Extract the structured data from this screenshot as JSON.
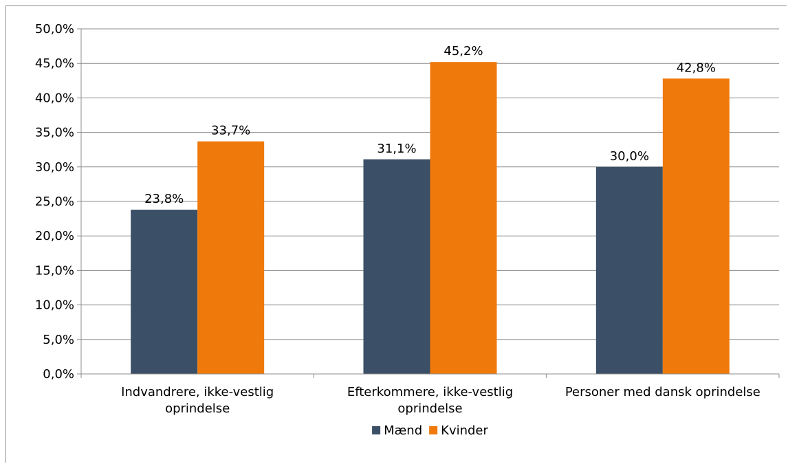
{
  "chart_data": {
    "type": "bar",
    "categories": [
      [
        "Indvandrere, ikke-vestlig",
        "oprindelse"
      ],
      [
        "Efterkommere, ikke-vestlig",
        "oprindelse"
      ],
      [
        "Personer med dansk oprindelse"
      ]
    ],
    "series": [
      {
        "name": "Mænd",
        "color": "#3b4f66",
        "values": [
          23.8,
          31.1,
          30.0
        ],
        "labels": [
          "23,8%",
          "31,1%",
          "30,0%"
        ]
      },
      {
        "name": "Kvinder",
        "color": "#ef7a0b",
        "values": [
          33.7,
          45.2,
          42.8
        ],
        "labels": [
          "33,7%",
          "45,2%",
          "42,8%"
        ]
      }
    ],
    "ylim": [
      0,
      50
    ],
    "yticks": [
      0,
      5,
      10,
      15,
      20,
      25,
      30,
      35,
      40,
      45,
      50
    ],
    "ytick_labels": [
      "0,0%",
      "5,0%",
      "10,0%",
      "15,0%",
      "20,0%",
      "25,0%",
      "30,0%",
      "35,0%",
      "40,0%",
      "45,0%",
      "50,0%"
    ],
    "grid": true,
    "gridline_color": "#8c8c8c",
    "legend_position": "bottom"
  }
}
